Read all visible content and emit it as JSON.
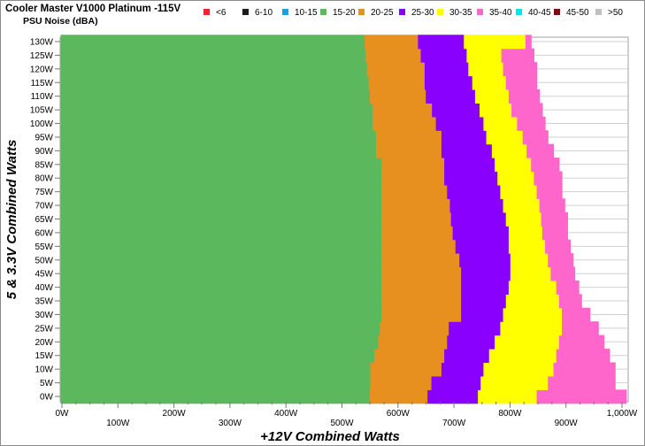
{
  "chart_data": {
    "type": "heatmap",
    "title": "Cooler Master V1000 Platinum -115V",
    "subtitle": "PSU Noise (dBA)",
    "xlabel": "+12V Combined Watts",
    "ylabel": "5 & 3.3V Combined Watts",
    "xlim": [
      0,
      1000
    ],
    "ylim": [
      0,
      130
    ],
    "x_ticks_lower": [
      "0W",
      "200W",
      "400W",
      "600W",
      "800W",
      "1,000W"
    ],
    "x_ticks_upper": [
      "100W",
      "300W",
      "500W",
      "700W",
      "900W"
    ],
    "y_ticks": [
      "0W",
      "5W",
      "10W",
      "15W",
      "20W",
      "25W",
      "30W",
      "35W",
      "40W",
      "45W",
      "50W",
      "55W",
      "60W",
      "65W",
      "70W",
      "75W",
      "80W",
      "85W",
      "90W",
      "95W",
      "100W",
      "105W",
      "110W",
      "115W",
      "120W",
      "125W",
      "130W"
    ],
    "legend": [
      {
        "label": "<6",
        "color": "#e8262b"
      },
      {
        "label": "6-10",
        "color": "#1a1a1a"
      },
      {
        "label": "10-15",
        "color": "#1aa1dc"
      },
      {
        "label": "15-20",
        "color": "#5cb85c"
      },
      {
        "label": "20-25",
        "color": "#e8901f"
      },
      {
        "label": "25-30",
        "color": "#8a00ff"
      },
      {
        "label": "30-35",
        "color": "#ffff00"
      },
      {
        "label": "35-40",
        "color": "#ff66cc"
      },
      {
        "label": "40-45",
        "color": "#00e5ee"
      },
      {
        "label": "45-50",
        "color": "#7a0f0f"
      },
      {
        "label": ">50",
        "color": "#c0c0c0"
      }
    ],
    "band_colors": [
      "#5cb85c",
      "#e8901f",
      "#8a00ff",
      "#ffff00",
      "#ff66cc"
    ],
    "y_levels": [
      0,
      5,
      10,
      15,
      20,
      25,
      30,
      35,
      40,
      45,
      50,
      55,
      60,
      65,
      70,
      75,
      80,
      85,
      90,
      95,
      100,
      105,
      110,
      115,
      120,
      125,
      130
    ],
    "boundaries": {
      "15-20_to_20-25": [
        552,
        553,
        553,
        560,
        567,
        570,
        573,
        573,
        573,
        573,
        573,
        573,
        573,
        573,
        573,
        573,
        573,
        573,
        563,
        563,
        557,
        557,
        552,
        550,
        547,
        545,
        543
      ],
      "20-25_to_25-30": [
        655,
        662,
        680,
        685,
        690,
        693,
        715,
        715,
        715,
        715,
        712,
        705,
        700,
        697,
        695,
        690,
        685,
        685,
        680,
        680,
        670,
        663,
        652,
        650,
        650,
        643,
        638
      ],
      "25-30_to_30-35": [
        745,
        750,
        755,
        765,
        775,
        785,
        790,
        795,
        800,
        803,
        803,
        800,
        800,
        795,
        790,
        785,
        780,
        775,
        770,
        760,
        755,
        748,
        740,
        735,
        728,
        725,
        720
      ],
      "30-35_to_35-40": [
        850,
        870,
        880,
        885,
        890,
        895,
        895,
        890,
        885,
        875,
        870,
        865,
        860,
        858,
        855,
        850,
        845,
        840,
        832,
        825,
        815,
        805,
        800,
        795,
        790,
        787,
        830
      ],
      "35-40_end": [
        1010,
        990,
        990,
        980,
        970,
        960,
        945,
        930,
        925,
        918,
        915,
        910,
        905,
        905,
        900,
        895,
        895,
        890,
        880,
        870,
        865,
        860,
        855,
        850,
        850,
        845,
        840
      ]
    }
  }
}
